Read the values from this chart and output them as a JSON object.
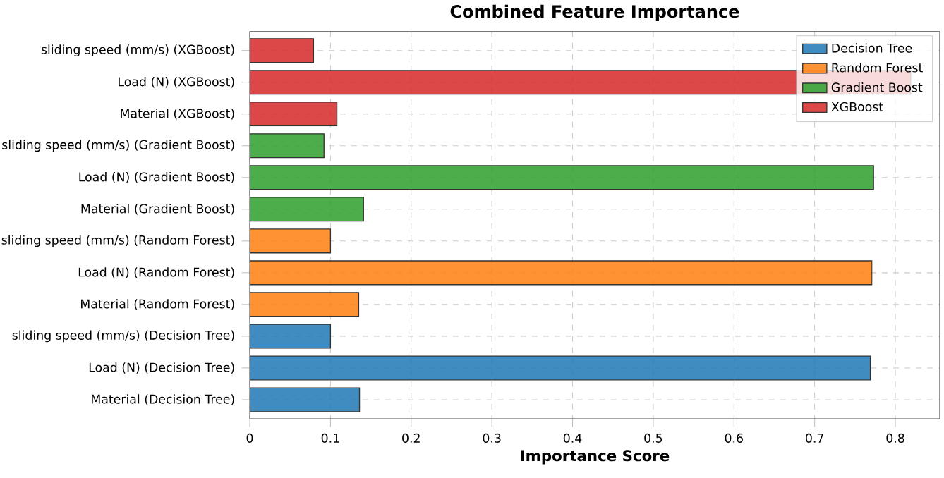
{
  "chart_data": {
    "type": "bar",
    "orientation": "horizontal",
    "title": "Combined Feature Importance",
    "xlabel": "Importance Score",
    "categories": [
      "sliding speed  (mm/s) (XGBoost)",
      "Load (N) (XGBoost)",
      "Material (XGBoost)",
      "sliding speed  (mm/s) (Gradient Boost)",
      "Load (N) (Gradient Boost)",
      "Material (Gradient Boost)",
      "sliding speed  (mm/s) (Random Forest)",
      "Load (N) (Random Forest)",
      "Material (Random Forest)",
      "sliding speed  (mm/s) (Decision Tree)",
      "Load (N) (Decision Tree)",
      "Material (Decision Tree)"
    ],
    "series": [
      {
        "name": "Decision Tree",
        "color": "#1f77b4",
        "values": [
          null,
          null,
          null,
          null,
          null,
          null,
          null,
          null,
          null,
          0.1,
          0.769,
          0.136
        ]
      },
      {
        "name": "Random Forest",
        "color": "#ff7f0e",
        "values": [
          null,
          null,
          null,
          null,
          null,
          null,
          0.1,
          0.771,
          0.135,
          null,
          null,
          null
        ]
      },
      {
        "name": "Gradient Boost",
        "color": "#2ca02c",
        "values": [
          null,
          null,
          null,
          0.092,
          0.773,
          0.141,
          null,
          null,
          null,
          null,
          null,
          null
        ]
      },
      {
        "name": "XGBoost",
        "color": "#d62728",
        "values": [
          0.079,
          0.819,
          0.108,
          null,
          null,
          null,
          null,
          null,
          null,
          null,
          null,
          null
        ]
      }
    ],
    "xlim": [
      0,
      0.855
    ],
    "xticks": [
      0,
      0.1,
      0.2,
      0.3,
      0.4,
      0.5,
      0.6,
      0.7,
      0.8
    ],
    "grid": true,
    "legend": "top right"
  }
}
